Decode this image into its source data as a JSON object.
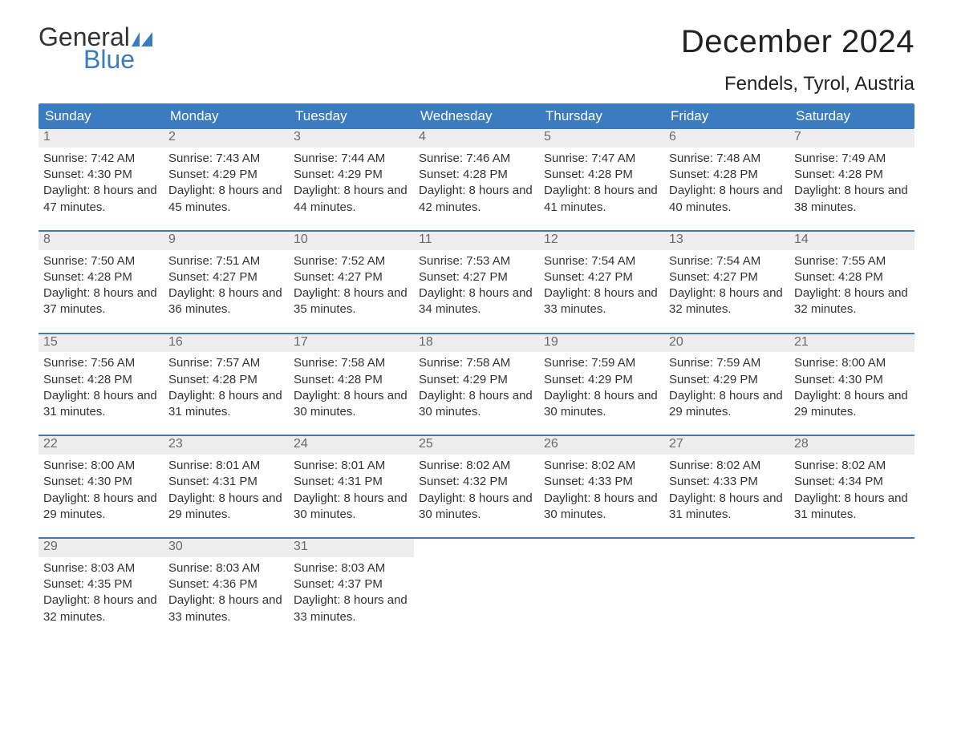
{
  "brand": {
    "word1": "General",
    "word2": "Blue"
  },
  "title": "December 2024",
  "location": "Fendels, Tyrol, Austria",
  "colors": {
    "header_bg": "#3b7bbf",
    "header_text": "#ffffff",
    "daynum_bg": "#eeeeee",
    "daynum_text": "#6a6a6a",
    "body_text": "#333333",
    "week_border": "#3b7bbf",
    "page_bg": "#ffffff",
    "logo_blue": "#3b7bbf"
  },
  "typography": {
    "title_fontsize": 40,
    "location_fontsize": 24,
    "weekday_fontsize": 17,
    "daynum_fontsize": 16,
    "body_fontsize": 15
  },
  "weekdays": [
    "Sunday",
    "Monday",
    "Tuesday",
    "Wednesday",
    "Thursday",
    "Friday",
    "Saturday"
  ],
  "layout": {
    "columns": 7,
    "rows": 5,
    "first_day_column": 0,
    "days_in_month": 31
  },
  "days": [
    {
      "n": 1,
      "sunrise": "7:42 AM",
      "sunset": "4:30 PM",
      "daylight": "8 hours and 47 minutes."
    },
    {
      "n": 2,
      "sunrise": "7:43 AM",
      "sunset": "4:29 PM",
      "daylight": "8 hours and 45 minutes."
    },
    {
      "n": 3,
      "sunrise": "7:44 AM",
      "sunset": "4:29 PM",
      "daylight": "8 hours and 44 minutes."
    },
    {
      "n": 4,
      "sunrise": "7:46 AM",
      "sunset": "4:28 PM",
      "daylight": "8 hours and 42 minutes."
    },
    {
      "n": 5,
      "sunrise": "7:47 AM",
      "sunset": "4:28 PM",
      "daylight": "8 hours and 41 minutes."
    },
    {
      "n": 6,
      "sunrise": "7:48 AM",
      "sunset": "4:28 PM",
      "daylight": "8 hours and 40 minutes."
    },
    {
      "n": 7,
      "sunrise": "7:49 AM",
      "sunset": "4:28 PM",
      "daylight": "8 hours and 38 minutes."
    },
    {
      "n": 8,
      "sunrise": "7:50 AM",
      "sunset": "4:28 PM",
      "daylight": "8 hours and 37 minutes."
    },
    {
      "n": 9,
      "sunrise": "7:51 AM",
      "sunset": "4:27 PM",
      "daylight": "8 hours and 36 minutes."
    },
    {
      "n": 10,
      "sunrise": "7:52 AM",
      "sunset": "4:27 PM",
      "daylight": "8 hours and 35 minutes."
    },
    {
      "n": 11,
      "sunrise": "7:53 AM",
      "sunset": "4:27 PM",
      "daylight": "8 hours and 34 minutes."
    },
    {
      "n": 12,
      "sunrise": "7:54 AM",
      "sunset": "4:27 PM",
      "daylight": "8 hours and 33 minutes."
    },
    {
      "n": 13,
      "sunrise": "7:54 AM",
      "sunset": "4:27 PM",
      "daylight": "8 hours and 32 minutes."
    },
    {
      "n": 14,
      "sunrise": "7:55 AM",
      "sunset": "4:28 PM",
      "daylight": "8 hours and 32 minutes."
    },
    {
      "n": 15,
      "sunrise": "7:56 AM",
      "sunset": "4:28 PM",
      "daylight": "8 hours and 31 minutes."
    },
    {
      "n": 16,
      "sunrise": "7:57 AM",
      "sunset": "4:28 PM",
      "daylight": "8 hours and 31 minutes."
    },
    {
      "n": 17,
      "sunrise": "7:58 AM",
      "sunset": "4:28 PM",
      "daylight": "8 hours and 30 minutes."
    },
    {
      "n": 18,
      "sunrise": "7:58 AM",
      "sunset": "4:29 PM",
      "daylight": "8 hours and 30 minutes."
    },
    {
      "n": 19,
      "sunrise": "7:59 AM",
      "sunset": "4:29 PM",
      "daylight": "8 hours and 30 minutes."
    },
    {
      "n": 20,
      "sunrise": "7:59 AM",
      "sunset": "4:29 PM",
      "daylight": "8 hours and 29 minutes."
    },
    {
      "n": 21,
      "sunrise": "8:00 AM",
      "sunset": "4:30 PM",
      "daylight": "8 hours and 29 minutes."
    },
    {
      "n": 22,
      "sunrise": "8:00 AM",
      "sunset": "4:30 PM",
      "daylight": "8 hours and 29 minutes."
    },
    {
      "n": 23,
      "sunrise": "8:01 AM",
      "sunset": "4:31 PM",
      "daylight": "8 hours and 29 minutes."
    },
    {
      "n": 24,
      "sunrise": "8:01 AM",
      "sunset": "4:31 PM",
      "daylight": "8 hours and 30 minutes."
    },
    {
      "n": 25,
      "sunrise": "8:02 AM",
      "sunset": "4:32 PM",
      "daylight": "8 hours and 30 minutes."
    },
    {
      "n": 26,
      "sunrise": "8:02 AM",
      "sunset": "4:33 PM",
      "daylight": "8 hours and 30 minutes."
    },
    {
      "n": 27,
      "sunrise": "8:02 AM",
      "sunset": "4:33 PM",
      "daylight": "8 hours and 31 minutes."
    },
    {
      "n": 28,
      "sunrise": "8:02 AM",
      "sunset": "4:34 PM",
      "daylight": "8 hours and 31 minutes."
    },
    {
      "n": 29,
      "sunrise": "8:03 AM",
      "sunset": "4:35 PM",
      "daylight": "8 hours and 32 minutes."
    },
    {
      "n": 30,
      "sunrise": "8:03 AM",
      "sunset": "4:36 PM",
      "daylight": "8 hours and 33 minutes."
    },
    {
      "n": 31,
      "sunrise": "8:03 AM",
      "sunset": "4:37 PM",
      "daylight": "8 hours and 33 minutes."
    }
  ],
  "labels": {
    "sunrise": "Sunrise:",
    "sunset": "Sunset:",
    "daylight": "Daylight:"
  }
}
